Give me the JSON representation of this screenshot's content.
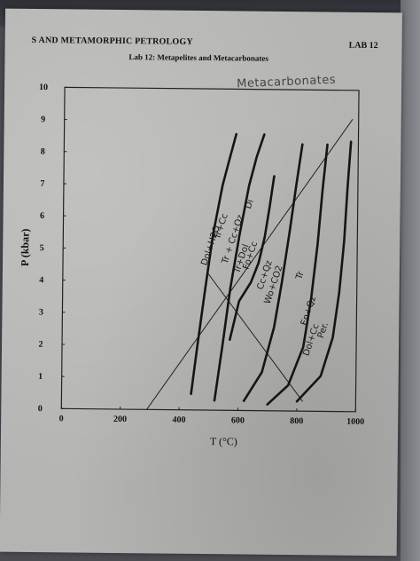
{
  "document": {
    "header_left": "S AND METAMORPHIC PETROLOGY",
    "header_right": "LAB 12",
    "subtitle": "Lab 12: Metapelites and Metacarbonates",
    "handwritten_title": "Metacarbonates"
  },
  "chart_data": {
    "type": "line",
    "title": "",
    "xlabel": "T (°C)",
    "ylabel": "P (kbar)",
    "xlim": [
      0,
      1000
    ],
    "ylim": [
      0,
      10
    ],
    "x_ticks": [
      "0",
      "200",
      "400",
      "600",
      "800",
      "1000"
    ],
    "y_ticks": [
      "0",
      "1",
      "2",
      "3",
      "4",
      "5",
      "6",
      "7",
      "8",
      "9",
      "10"
    ],
    "grid": false,
    "printed_lines": [
      {
        "x": [
          290,
          980
        ],
        "y": [
          0,
          9.1
        ]
      },
      {
        "x": [
          490,
          820
        ],
        "y": [
          4.3,
          0.3
        ]
      }
    ],
    "series": [
      {
        "name": "Dol+H2O / Tr+Cc",
        "x": [
          440,
          460,
          485,
          510,
          540,
          565,
          585
        ],
        "y": [
          0.5,
          2.0,
          3.8,
          5.5,
          7.0,
          7.9,
          8.6
        ]
      },
      {
        "name": "Tr+Cc+Qz / Di",
        "x": [
          520,
          545,
          570,
          600,
          630,
          655,
          680
        ],
        "y": [
          0.3,
          2.0,
          3.8,
          5.5,
          7.0,
          7.9,
          8.6
        ]
      },
      {
        "name": "Tr+Dol / Fo+Cc",
        "x": [
          570,
          600,
          640,
          665,
          685,
          700,
          715
        ],
        "y": [
          2.2,
          3.4,
          4.0,
          4.6,
          5.4,
          6.3,
          7.3
        ]
      },
      {
        "name": "Cc+Qz / Wo+CO2",
        "x": [
          620,
          680,
          720,
          745,
          770,
          790,
          810
        ],
        "y": [
          0.3,
          1.2,
          2.6,
          4.0,
          5.6,
          7.0,
          8.3
        ]
      },
      {
        "name": "Tr / En+Qz",
        "x": [
          700,
          770,
          820,
          845,
          865,
          880,
          895
        ],
        "y": [
          0.2,
          0.8,
          2.0,
          3.5,
          5.2,
          6.9,
          8.3
        ]
      },
      {
        "name": "Dol+Cc / Per",
        "x": [
          800,
          880,
          920,
          940,
          955,
          965,
          975
        ],
        "y": [
          0.3,
          1.1,
          2.3,
          3.7,
          5.3,
          7.0,
          8.4
        ]
      }
    ],
    "annotations": [
      {
        "text": "Dol+H2O",
        "x": 510,
        "y": 5.1
      },
      {
        "text": "Tr+Cc",
        "x": 545,
        "y": 5.7
      },
      {
        "text": "Tr + Cc+Qz",
        "x": 585,
        "y": 5.3
      },
      {
        "text": "Di",
        "x": 640,
        "y": 6.4
      },
      {
        "text": "Tr+Dol",
        "x": 615,
        "y": 4.7
      },
      {
        "text": "Fo+Cc",
        "x": 645,
        "y": 4.8
      },
      {
        "text": "Cc+Qz",
        "x": 695,
        "y": 4.2
      },
      {
        "text": "Wo+CO2",
        "x": 725,
        "y": 3.9
      },
      {
        "text": "Tr",
        "x": 815,
        "y": 4.2
      },
      {
        "text": "En+Qz",
        "x": 845,
        "y": 3.1
      },
      {
        "text": "Dol+Cc",
        "x": 855,
        "y": 2.2
      },
      {
        "text": "Per.",
        "x": 895,
        "y": 2.5
      }
    ]
  }
}
